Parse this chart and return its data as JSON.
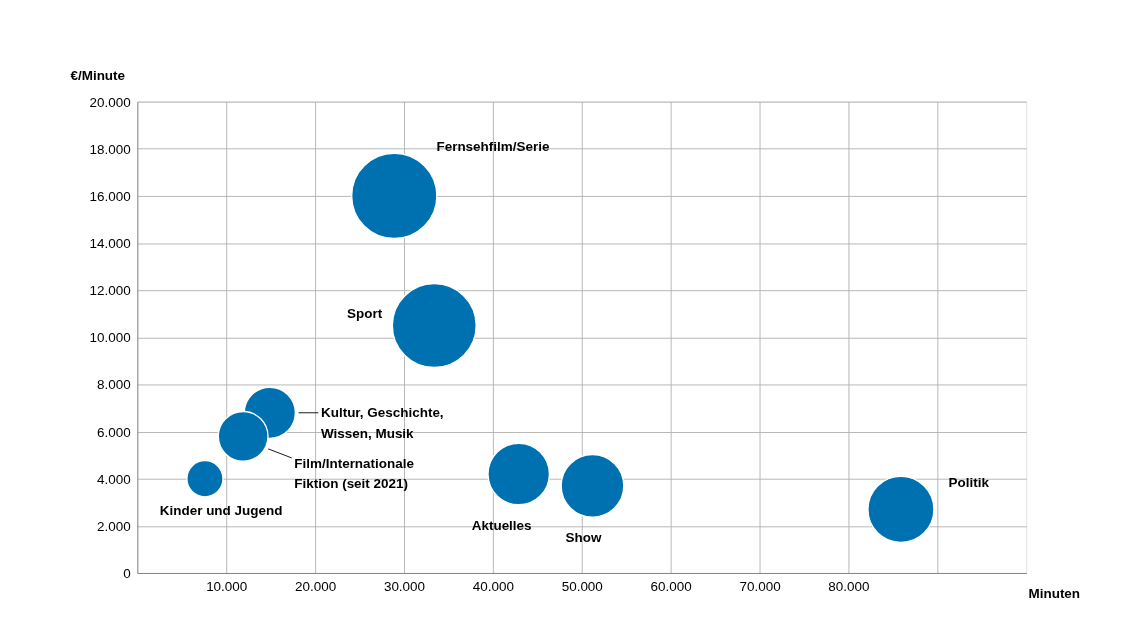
{
  "chart_data": {
    "type": "bubble",
    "xlabel": "Minuten",
    "ylabel": "€/Minute",
    "xlim": [
      0,
      100000
    ],
    "ylim": [
      0,
      20000
    ],
    "xticks": [
      {
        "value": 10000,
        "label": "10.000"
      },
      {
        "value": 20000,
        "label": "20.000"
      },
      {
        "value": 30000,
        "label": "30.000"
      },
      {
        "value": 40000,
        "label": "40.000"
      },
      {
        "value": 50000,
        "label": "50.000"
      },
      {
        "value": 60000,
        "label": "60.000"
      },
      {
        "value": 70000,
        "label": "70.000"
      },
      {
        "value": 80000,
        "label": "80.000"
      },
      {
        "value": 90000,
        "label": null
      }
    ],
    "yticks": [
      0,
      {
        "value": 2000,
        "label": "2.000"
      },
      {
        "value": 4000,
        "label": "4.000"
      },
      {
        "value": 6000,
        "label": "6.000"
      },
      {
        "value": 8000,
        "label": "8.000"
      },
      {
        "value": 10000,
        "label": "10.000"
      },
      {
        "value": 12000,
        "label": "12.000"
      },
      {
        "value": 14000,
        "label": "14.000"
      },
      {
        "value": 16000,
        "label": "16.000"
      },
      {
        "value": 18000,
        "label": "18.000"
      },
      {
        "value": 20000,
        "label": "20.000"
      }
    ],
    "grid": true,
    "series": [
      {
        "name": "Fernsehfilm/Serie",
        "color": "#0071b0",
        "x": [
          28900
        ],
        "values": [
          16000
        ],
        "sizes": [
          1
        ]
      },
      {
        "name": "Sport",
        "color": "#0071b0",
        "x": [
          33400
        ],
        "values": [
          10500
        ],
        "sizes": [
          0.97
        ]
      },
      {
        "name": "Kultur, Geschichte,\nWissen, Musik",
        "color": "#0071b0",
        "x": [
          14900
        ],
        "values": [
          6800
        ],
        "sizes": [
          0.36
        ]
      },
      {
        "name": "Film/Internationale\nFiktion (seit 2021)",
        "color": "#0071b0",
        "x": [
          11900
        ],
        "values": [
          5800
        ],
        "sizes": [
          0.34
        ]
      },
      {
        "name": "Kinder und Jugend",
        "color": "#0071b0",
        "x": [
          7600
        ],
        "values": [
          4000
        ],
        "sizes": [
          0.18
        ]
      },
      {
        "name": "Aktuelles",
        "color": "#0071b0",
        "x": [
          42900
        ],
        "values": [
          4200
        ],
        "sizes": [
          0.52
        ]
      },
      {
        "name": "Show",
        "color": "#0071b0",
        "x": [
          51200
        ],
        "values": [
          3700
        ],
        "sizes": [
          0.54
        ]
      },
      {
        "name": "Politik",
        "color": "#0071b0",
        "x": [
          85900
        ],
        "values": [
          2700
        ],
        "sizes": [
          0.6
        ]
      }
    ]
  }
}
